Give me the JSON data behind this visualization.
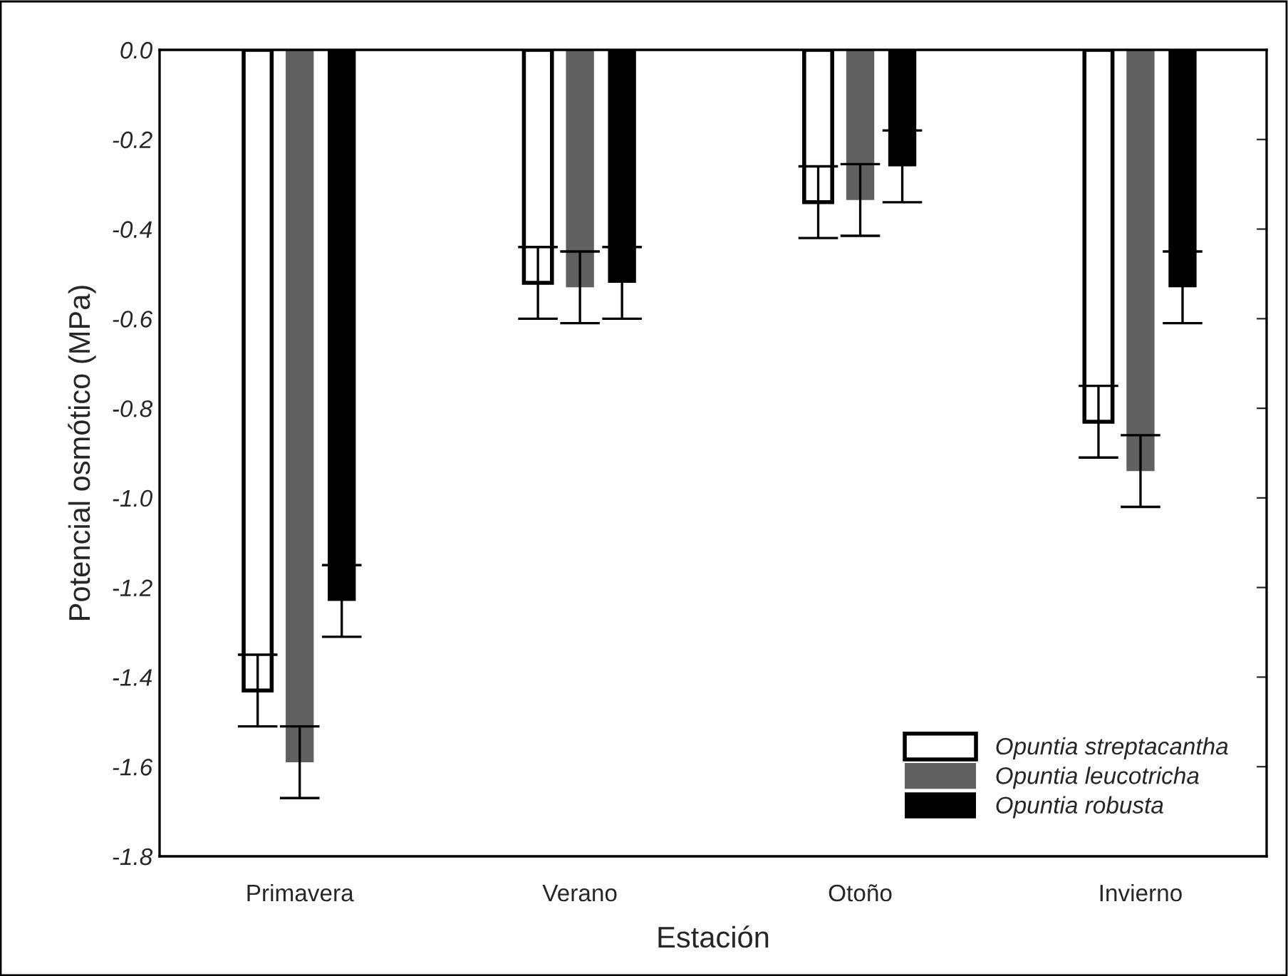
{
  "chart_data": {
    "type": "bar",
    "xlabel": "Estación",
    "ylabel": "Potencial osmótico (MPa)",
    "categories": [
      "Primavera",
      "Verano",
      "Otoño",
      "Invierno"
    ],
    "series": [
      {
        "name": "Opuntia streptacantha",
        "color": "#ffffff",
        "values": [
          -1.43,
          -0.52,
          -0.34,
          -0.83
        ],
        "errors": [
          0.08,
          0.08,
          0.08,
          0.08
        ]
      },
      {
        "name": "Opuntia leucotricha",
        "color": "#606060",
        "values": [
          -1.59,
          -0.53,
          -0.335,
          -0.94
        ],
        "errors": [
          0.08,
          0.08,
          0.08,
          0.08
        ]
      },
      {
        "name": "Opuntia robusta",
        "color": "#000000",
        "values": [
          -1.23,
          -0.52,
          -0.26,
          -0.53
        ],
        "errors": [
          0.08,
          0.08,
          0.08,
          0.08
        ]
      }
    ],
    "ylim": [
      -1.8,
      0.0
    ],
    "yticks": [
      {
        "value": 0.0,
        "label": "0.0"
      },
      -0.2,
      -0.4,
      -0.6,
      -0.8,
      {
        "value": -1.0,
        "label": "-1.0"
      },
      -1.2,
      -1.4,
      -1.6,
      -1.8
    ],
    "grid": false,
    "legend": "bottom right"
  }
}
